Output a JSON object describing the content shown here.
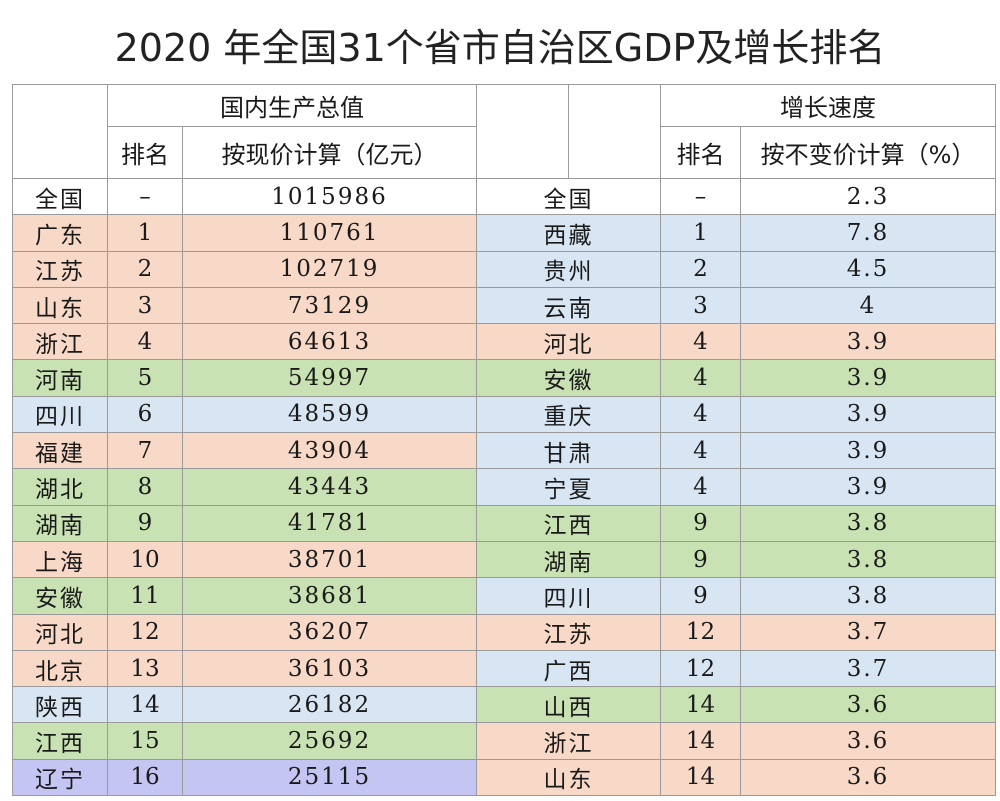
{
  "title": "2020 年全国31个省市自治区GDP及增长排名",
  "left_section": {
    "header": "国内生产总值",
    "rank_header": "排名",
    "value_header": "按现价计算（亿元）"
  },
  "right_section": {
    "header": "增长速度",
    "rank_header": "排名",
    "value_header": "按不变价计算（%）"
  },
  "colors": {
    "white": "#ffffff",
    "pink": "#f8d9c8",
    "green": "#c9e2b3",
    "blue": "#d8e6f4",
    "purple": "#c4c5f2",
    "border": "#9a9a9a"
  },
  "rows": [
    {
      "l_name": "全国",
      "l_rank": "–",
      "l_value": "1015986",
      "l_color": "white",
      "r_name": "全国",
      "r_rank": "–",
      "r_value": "2.3",
      "r_color": "white"
    },
    {
      "l_name": "广东",
      "l_rank": "1",
      "l_value": "110761",
      "l_color": "pink",
      "r_name": "西藏",
      "r_rank": "1",
      "r_value": "7.8",
      "r_color": "blue"
    },
    {
      "l_name": "江苏",
      "l_rank": "2",
      "l_value": "102719",
      "l_color": "pink",
      "r_name": "贵州",
      "r_rank": "2",
      "r_value": "4.5",
      "r_color": "blue"
    },
    {
      "l_name": "山东",
      "l_rank": "3",
      "l_value": "73129",
      "l_color": "pink",
      "r_name": "云南",
      "r_rank": "3",
      "r_value": "4",
      "r_color": "blue"
    },
    {
      "l_name": "浙江",
      "l_rank": "4",
      "l_value": "64613",
      "l_color": "pink",
      "r_name": "河北",
      "r_rank": "4",
      "r_value": "3.9",
      "r_color": "pink"
    },
    {
      "l_name": "河南",
      "l_rank": "5",
      "l_value": "54997",
      "l_color": "green",
      "r_name": "安徽",
      "r_rank": "4",
      "r_value": "3.9",
      "r_color": "green"
    },
    {
      "l_name": "四川",
      "l_rank": "6",
      "l_value": "48599",
      "l_color": "blue",
      "r_name": "重庆",
      "r_rank": "4",
      "r_value": "3.9",
      "r_color": "blue"
    },
    {
      "l_name": "福建",
      "l_rank": "7",
      "l_value": "43904",
      "l_color": "pink",
      "r_name": "甘肃",
      "r_rank": "4",
      "r_value": "3.9",
      "r_color": "blue"
    },
    {
      "l_name": "湖北",
      "l_rank": "8",
      "l_value": "43443",
      "l_color": "green",
      "r_name": "宁夏",
      "r_rank": "4",
      "r_value": "3.9",
      "r_color": "blue"
    },
    {
      "l_name": "湖南",
      "l_rank": "9",
      "l_value": "41781",
      "l_color": "green",
      "r_name": "江西",
      "r_rank": "9",
      "r_value": "3.8",
      "r_color": "green"
    },
    {
      "l_name": "上海",
      "l_rank": "10",
      "l_value": "38701",
      "l_color": "pink",
      "r_name": "湖南",
      "r_rank": "9",
      "r_value": "3.8",
      "r_color": "green"
    },
    {
      "l_name": "安徽",
      "l_rank": "11",
      "l_value": "38681",
      "l_color": "green",
      "r_name": "四川",
      "r_rank": "9",
      "r_value": "3.8",
      "r_color": "blue"
    },
    {
      "l_name": "河北",
      "l_rank": "12",
      "l_value": "36207",
      "l_color": "pink",
      "r_name": "江苏",
      "r_rank": "12",
      "r_value": "3.7",
      "r_color": "pink"
    },
    {
      "l_name": "北京",
      "l_rank": "13",
      "l_value": "36103",
      "l_color": "pink",
      "r_name": "广西",
      "r_rank": "12",
      "r_value": "3.7",
      "r_color": "blue"
    },
    {
      "l_name": "陕西",
      "l_rank": "14",
      "l_value": "26182",
      "l_color": "blue",
      "r_name": "山西",
      "r_rank": "14",
      "r_value": "3.6",
      "r_color": "green"
    },
    {
      "l_name": "江西",
      "l_rank": "15",
      "l_value": "25692",
      "l_color": "green",
      "r_name": "浙江",
      "r_rank": "14",
      "r_value": "3.6",
      "r_color": "pink"
    },
    {
      "l_name": "辽宁",
      "l_rank": "16",
      "l_value": "25115",
      "l_color": "purple",
      "r_name": "山东",
      "r_rank": "14",
      "r_value": "3.6",
      "r_color": "pink"
    }
  ]
}
